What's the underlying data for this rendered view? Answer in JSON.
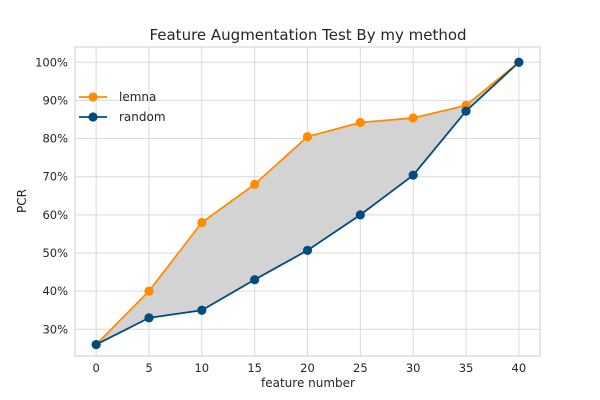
{
  "chart_data": {
    "type": "line",
    "title": "Feature Augmentation Test By my method",
    "xlabel": "feature number",
    "ylabel": "PCR",
    "x": [
      0,
      5,
      10,
      15,
      20,
      25,
      30,
      35,
      40
    ],
    "xlim": [
      -2,
      42
    ],
    "ylim": [
      0.23,
      1.04
    ],
    "xticks": [
      0,
      5,
      10,
      15,
      20,
      25,
      30,
      35,
      40
    ],
    "yticks": [
      0.3,
      0.4,
      0.5,
      0.6,
      0.7,
      0.8,
      0.9,
      1.0
    ],
    "ytick_labels": [
      "30%",
      "40%",
      "50%",
      "60%",
      "70%",
      "80%",
      "90%",
      "100%"
    ],
    "grid": true,
    "legend_position": "upper-left",
    "fill_between": {
      "series": [
        "lemna",
        "random"
      ],
      "color": "#d3d3d3"
    },
    "series": [
      {
        "name": "lemna",
        "color": "#ff8c00",
        "values": [
          0.26,
          0.4,
          0.58,
          0.68,
          0.805,
          0.842,
          0.854,
          0.887,
          1.0
        ]
      },
      {
        "name": "random",
        "color": "#004c80",
        "values": [
          0.26,
          0.33,
          0.35,
          0.43,
          0.507,
          0.6,
          0.704,
          0.872,
          1.0
        ]
      }
    ]
  }
}
